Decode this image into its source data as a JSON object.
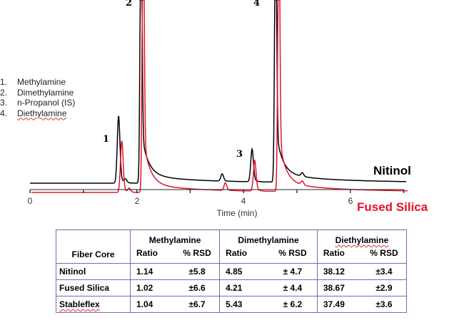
{
  "legend": [
    {
      "num": "1.",
      "name": "Methylamine"
    },
    {
      "num": "2.",
      "name": "Dimethylamine"
    },
    {
      "num": "3.",
      "name": "n-Propanol (IS)"
    },
    {
      "num": "4.",
      "name": "Diethylamine"
    }
  ],
  "series_labels": {
    "nitinol": "Nitinol",
    "fused": "Fused Silica"
  },
  "colors": {
    "nitinol": "#000000",
    "fused": "#e8102a",
    "table_border": "#7b68b0"
  },
  "peak_labels": [
    "1",
    "2",
    "3",
    "4"
  ],
  "chart_data": {
    "type": "line",
    "title": "",
    "xlabel": "Time (min)",
    "ylabel": "",
    "xlim": [
      0,
      7
    ],
    "x_ticks": [
      0,
      2,
      4,
      6
    ],
    "x_ticks_minor": [
      1,
      3,
      5,
      7
    ],
    "grid": false,
    "series": [
      {
        "name": "Nitinol",
        "peaks": [
          {
            "label": "1",
            "time": 1.66,
            "height": 0.37
          },
          {
            "label": "",
            "time": 1.79,
            "height": 0.02
          },
          {
            "label": "2",
            "time": 2.08,
            "height": 1.0
          },
          {
            "label": "",
            "time": 3.6,
            "height": 0.04
          },
          {
            "label": "3",
            "time": 4.16,
            "height": 0.18
          },
          {
            "label": "4",
            "time": 4.6,
            "height": 1.0
          },
          {
            "label": "",
            "time": 5.1,
            "height": 0.02
          }
        ]
      },
      {
        "name": "Fused Silica",
        "peaks": [
          {
            "label": "1",
            "time": 1.72,
            "height": 0.27
          },
          {
            "label": "",
            "time": 1.86,
            "height": 0.02
          },
          {
            "label": "2",
            "time": 2.12,
            "height": 1.0
          },
          {
            "label": "",
            "time": 3.66,
            "height": 0.04
          },
          {
            "label": "3",
            "time": 4.21,
            "height": 0.16
          },
          {
            "label": "4",
            "time": 4.66,
            "height": 1.0
          },
          {
            "label": "",
            "time": 5.1,
            "height": 0.02
          }
        ]
      }
    ]
  },
  "table": {
    "col_header": "Fiber Core",
    "groups": [
      "Methylamine",
      "Dimethylamine",
      "Diethylamine"
    ],
    "sub": [
      "Ratio",
      "% RSD"
    ],
    "rows": [
      {
        "core": "Nitinol",
        "vals": [
          "1.14",
          "±5.8",
          "4.85",
          "± 4.7",
          "38.12",
          "±3.4"
        ]
      },
      {
        "core": "Fused Silica",
        "vals": [
          "1.02",
          "±6.6",
          "4.21",
          "± 4.4",
          "38.67",
          "±2.9"
        ]
      },
      {
        "core": "Stableflex",
        "vals": [
          "1.04",
          "±6.7",
          "5.43",
          "± 6.2",
          "37.49",
          "±3.6"
        ]
      }
    ]
  }
}
